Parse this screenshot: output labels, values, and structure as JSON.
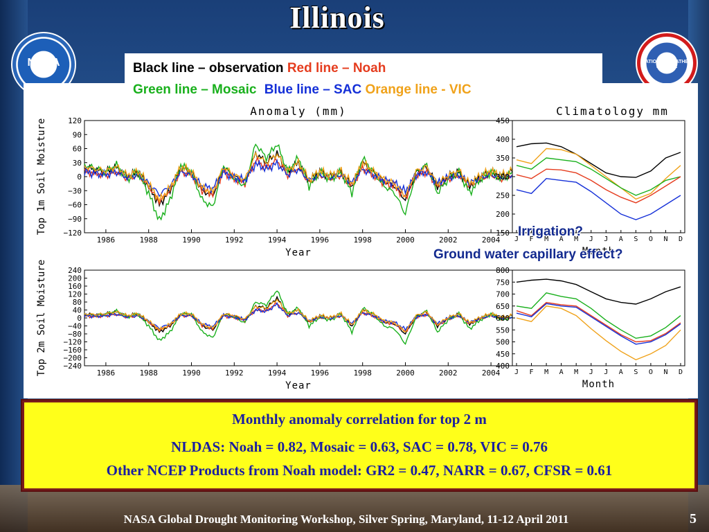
{
  "slide_title": "Illinois",
  "legend": {
    "black_label": "Black line – observation",
    "red_label": "Red line – Noah",
    "green_label": "Green line – Mosaic",
    "blue_label": "Blue line – SAC",
    "orange_label": "Orange line - VIC"
  },
  "colors": {
    "observation": "#000000",
    "noah": "#e53c1e",
    "mosaic": "#19b01c",
    "sac": "#1530d8",
    "vic": "#f0a21a"
  },
  "annotations": {
    "irrigation": "Irrigation?",
    "ground_water": "Ground water capillary effect?"
  },
  "summary": {
    "heading": "Monthly anomaly correlation for top 2 m",
    "nldas": "NLDAS: Noah = 0.82, Mosaic = 0.63, SAC = 0.78, VIC = 0.76",
    "ncep": "Other NCEP Products from Noah model: GR2 = 0.47, NARR = 0.67, CFSR = 0.61"
  },
  "footer": "NASA Global Drought Monitoring Workshop, Silver Spring, Maryland, 11-12 April 2011",
  "page_number": "5",
  "logos": {
    "left": "NOAA",
    "right": "NATIONAL WEATHER SERVICE"
  },
  "chart_data": [
    {
      "type": "line",
      "title": "Anomaly (mm)",
      "ylabel": "Top 1m Soil Moisture",
      "xlabel": "Year",
      "xlim": [
        1985,
        2005
      ],
      "ylim": [
        -120,
        120
      ],
      "xticks": [
        1986,
        1988,
        1990,
        1992,
        1994,
        1996,
        1998,
        2000,
        2002,
        2004
      ],
      "yticks": [
        -120,
        -90,
        -60,
        -30,
        0,
        30,
        60,
        90,
        120
      ],
      "ytick_labels": [
        "−120",
        "−90",
        "−60",
        "−30",
        "0",
        "30",
        "60",
        "90",
        "120"
      ],
      "anchors": {
        "x": [
          1985,
          1985.5,
          1986,
          1986.5,
          1987,
          1987.5,
          1988,
          1988.5,
          1989,
          1989.5,
          1990,
          1990.5,
          1991,
          1991.5,
          1992,
          1992.5,
          1993,
          1993.5,
          1994,
          1994.5,
          1995,
          1995.5,
          1996,
          1996.5,
          1997,
          1997.5,
          1998,
          1998.5,
          1999,
          1999.5,
          2000,
          2000.5,
          2001,
          2001.5,
          2002,
          2002.5,
          2003,
          2003.5,
          2004,
          2004.5,
          2005
        ],
        "base": [
          20,
          15,
          10,
          20,
          0,
          10,
          -20,
          -60,
          -30,
          20,
          10,
          -30,
          -40,
          20,
          0,
          -10,
          50,
          30,
          50,
          10,
          30,
          -10,
          10,
          0,
          10,
          -20,
          30,
          10,
          -10,
          -20,
          -50,
          10,
          20,
          -20,
          0,
          10,
          -20,
          0,
          10,
          0,
          10
        ]
      },
      "series": [
        {
          "name": "observation",
          "scale": 1.0,
          "offset": 0,
          "color": "#000000"
        },
        {
          "name": "Noah",
          "scale": 0.8,
          "offset": -5,
          "color": "#e53c1e"
        },
        {
          "name": "Mosaic",
          "scale": 1.5,
          "offset": -5,
          "color": "#19b01c"
        },
        {
          "name": "SAC",
          "scale": 0.6,
          "offset": -2,
          "color": "#1530d8"
        },
        {
          "name": "VIC",
          "scale": 0.9,
          "offset": 3,
          "color": "#f0a21a"
        }
      ]
    },
    {
      "type": "line",
      "title": "Climatology mm",
      "xlabel": "Month",
      "ylim": [
        150,
        450
      ],
      "yticks": [
        150,
        200,
        250,
        300,
        350,
        400,
        450
      ],
      "categories": [
        "J",
        "F",
        "M",
        "A",
        "M",
        "J",
        "J",
        "A",
        "S",
        "O",
        "N",
        "D"
      ],
      "series": [
        {
          "name": "observation",
          "color": "#000000",
          "values": [
            380,
            388,
            390,
            380,
            360,
            335,
            310,
            300,
            298,
            315,
            350,
            365
          ]
        },
        {
          "name": "VIC",
          "color": "#f0a21a",
          "values": [
            345,
            335,
            375,
            372,
            360,
            330,
            300,
            270,
            240,
            255,
            295,
            330
          ]
        },
        {
          "name": "Mosaic",
          "color": "#19b01c",
          "values": [
            330,
            320,
            350,
            345,
            340,
            320,
            295,
            270,
            250,
            265,
            290,
            300
          ]
        },
        {
          "name": "Noah",
          "color": "#e53c1e",
          "values": [
            305,
            295,
            320,
            318,
            310,
            290,
            265,
            245,
            230,
            250,
            275,
            300
          ]
        },
        {
          "name": "SAC",
          "color": "#1530d8",
          "values": [
            265,
            255,
            295,
            290,
            285,
            260,
            230,
            200,
            185,
            200,
            225,
            250
          ]
        }
      ]
    },
    {
      "type": "line",
      "title": "",
      "ylabel": "Top 2m Soil Moisture",
      "xlabel": "Year",
      "xlim": [
        1985,
        2005
      ],
      "ylim": [
        -240,
        240
      ],
      "xticks": [
        1986,
        1988,
        1990,
        1992,
        1994,
        1996,
        1998,
        2000,
        2002,
        2004
      ],
      "yticks": [
        -240,
        -200,
        -160,
        -120,
        -80,
        -40,
        0,
        40,
        80,
        120,
        160,
        200,
        240
      ],
      "ytick_labels": [
        "−240",
        "−200",
        "−160",
        "−120",
        "−80",
        "−40",
        "0",
        "40",
        "80",
        "120",
        "160",
        "200",
        "240"
      ],
      "anchors": {
        "x": [
          1985,
          1985.5,
          1986,
          1986.5,
          1987,
          1987.5,
          1988,
          1988.5,
          1989,
          1989.5,
          1990,
          1990.5,
          1991,
          1991.5,
          1992,
          1992.5,
          1993,
          1993.5,
          1994,
          1994.5,
          1995,
          1995.5,
          1996,
          1996.5,
          1997,
          1997.5,
          1998,
          1998.5,
          1999,
          1999.5,
          2000,
          2000.5,
          2001,
          2001.5,
          2002,
          2002.5,
          2003,
          2003.5,
          2004,
          2004.5,
          2005
        ],
        "base": [
          20,
          15,
          20,
          30,
          10,
          20,
          -20,
          -70,
          -40,
          20,
          20,
          -40,
          -60,
          20,
          10,
          -10,
          60,
          50,
          100,
          20,
          40,
          -20,
          10,
          0,
          20,
          -40,
          40,
          20,
          -20,
          -30,
          -80,
          10,
          30,
          -40,
          0,
          20,
          -30,
          0,
          20,
          0,
          10
        ]
      },
      "series": [
        {
          "name": "observation",
          "scale": 1.0,
          "offset": 0,
          "color": "#000000"
        },
        {
          "name": "Noah",
          "scale": 0.8,
          "offset": -5,
          "color": "#e53c1e"
        },
        {
          "name": "Mosaic",
          "scale": 1.5,
          "offset": -10,
          "color": "#19b01c"
        },
        {
          "name": "SAC",
          "scale": 0.7,
          "offset": -2,
          "color": "#1530d8"
        },
        {
          "name": "VIC",
          "scale": 0.9,
          "offset": 3,
          "color": "#f0a21a"
        }
      ]
    },
    {
      "type": "line",
      "title": "",
      "xlabel": "Month",
      "ylim": [
        400,
        800
      ],
      "yticks": [
        400,
        450,
        500,
        550,
        600,
        650,
        700,
        750,
        800
      ],
      "categories": [
        "J",
        "F",
        "M",
        "A",
        "M",
        "J",
        "J",
        "A",
        "S",
        "O",
        "N",
        "D"
      ],
      "series": [
        {
          "name": "observation",
          "color": "#000000",
          "values": [
            750,
            758,
            762,
            755,
            740,
            710,
            680,
            665,
            658,
            680,
            710,
            730
          ]
        },
        {
          "name": "Mosaic",
          "color": "#19b01c",
          "values": [
            650,
            640,
            705,
            690,
            680,
            640,
            590,
            550,
            515,
            525,
            560,
            610
          ]
        },
        {
          "name": "Noah",
          "color": "#e53c1e",
          "values": [
            630,
            610,
            665,
            655,
            650,
            610,
            570,
            530,
            500,
            505,
            535,
            580
          ]
        },
        {
          "name": "SAC",
          "color": "#1530d8",
          "values": [
            620,
            605,
            660,
            650,
            645,
            605,
            565,
            525,
            490,
            500,
            530,
            575
          ]
        },
        {
          "name": "VIC",
          "color": "#f0a21a",
          "values": [
            600,
            585,
            650,
            640,
            610,
            555,
            505,
            460,
            425,
            450,
            485,
            550
          ]
        }
      ]
    }
  ]
}
